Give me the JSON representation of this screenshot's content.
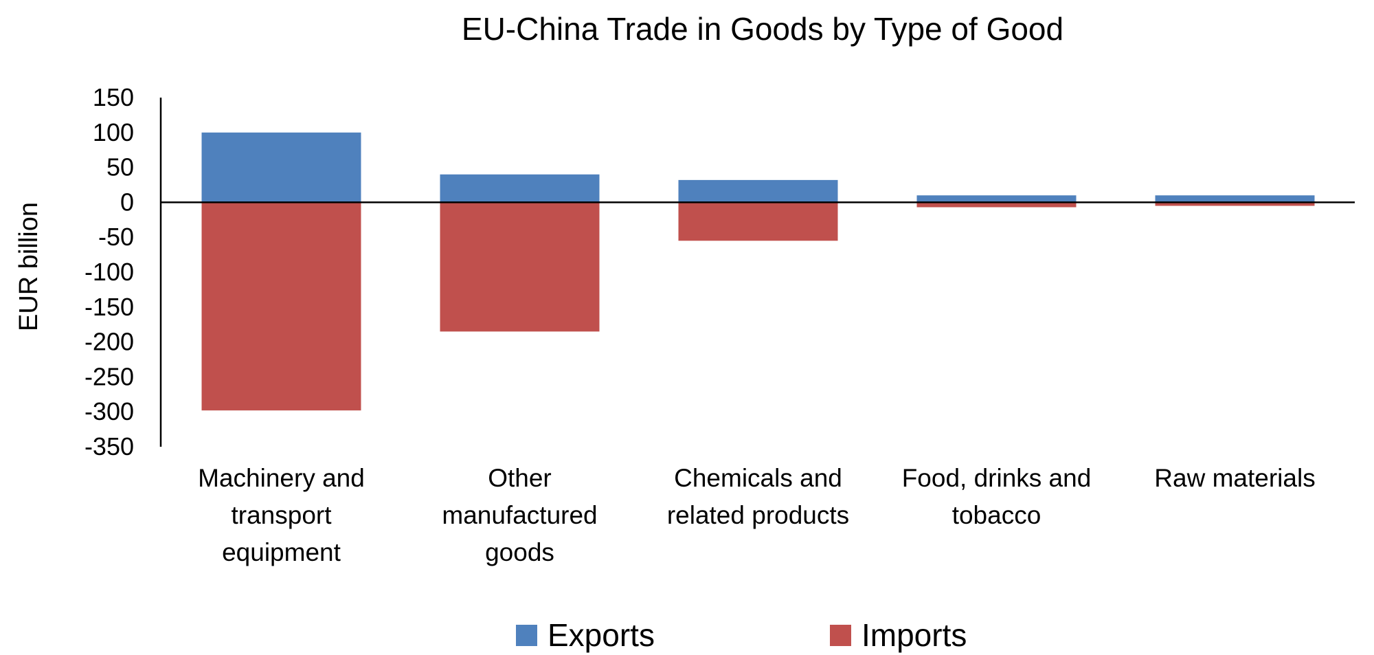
{
  "chart_data": {
    "type": "bar",
    "title": "EU-China Trade in Goods by Type of Good",
    "xlabel": "",
    "ylabel": "EUR billion",
    "ylim": [
      -350,
      150
    ],
    "yticks": [
      150,
      100,
      50,
      0,
      -50,
      -100,
      -150,
      -200,
      -250,
      -300,
      -350
    ],
    "categories": [
      [
        "Machinery and",
        "transport",
        "equipment"
      ],
      [
        "Other",
        "manufactured",
        "goods"
      ],
      [
        "Chemicals and",
        "related products"
      ],
      [
        "Food, drinks and",
        "tobacco"
      ],
      [
        "Raw materials"
      ]
    ],
    "series": [
      {
        "name": "Exports",
        "color": "#4f81bd",
        "values": [
          100,
          40,
          32,
          10,
          10
        ]
      },
      {
        "name": "Imports",
        "color": "#c0504d",
        "values": [
          -298,
          -185,
          -55,
          -7,
          -5
        ]
      }
    ],
    "stacked": true,
    "grid": false,
    "legend_position": "bottom"
  }
}
